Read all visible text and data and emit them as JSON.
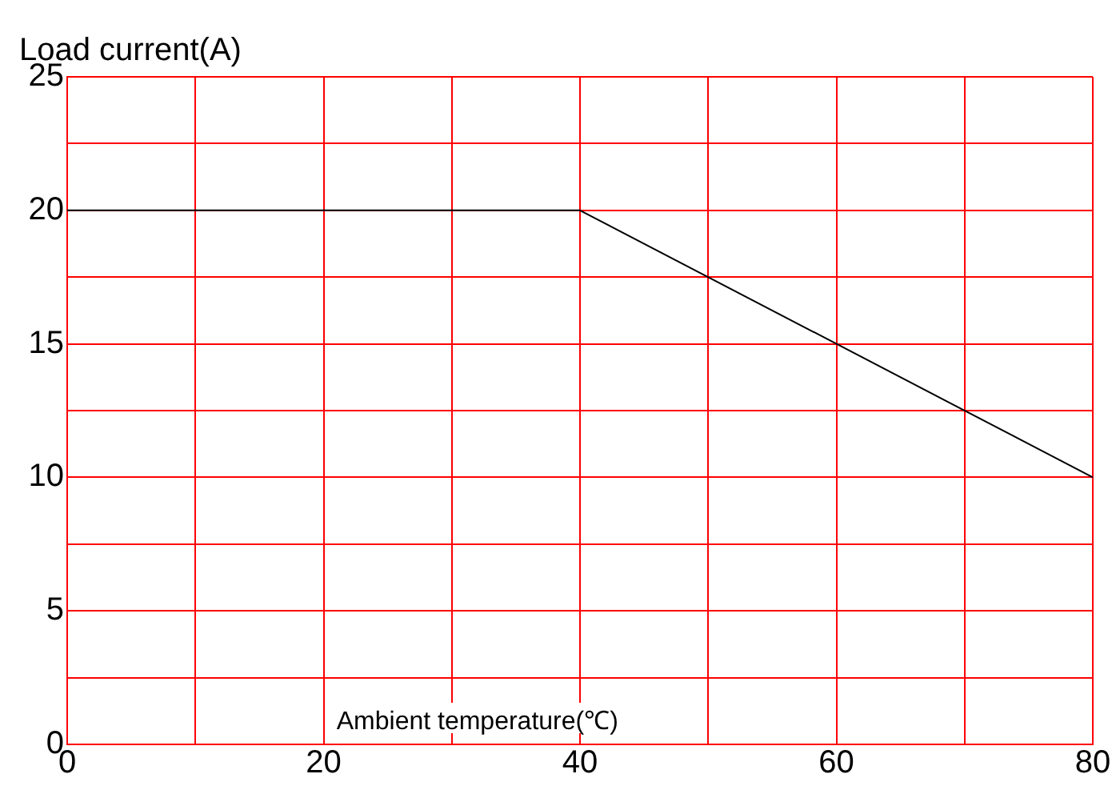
{
  "chart_data": {
    "type": "line",
    "xlabel": "Ambient temperature(℃)",
    "ylabel": "Load current(A)",
    "x": [
      0,
      40,
      80
    ],
    "series": [
      {
        "color": "#000000",
        "values": [
          20,
          20,
          10
        ]
      }
    ],
    "xlim": [
      0,
      80
    ],
    "ylim": [
      0,
      25
    ],
    "xticks": [
      0,
      {
        "value": 10,
        "label": null
      },
      20,
      {
        "value": 30,
        "label": null
      },
      40,
      {
        "value": 50,
        "label": null
      },
      60,
      {
        "value": 70,
        "label": null
      },
      80
    ],
    "yticks": [
      0,
      {
        "value": 2.5,
        "label": null
      },
      5,
      {
        "value": 7.5,
        "label": null
      },
      10,
      {
        "value": 12.5,
        "label": null
      },
      15,
      {
        "value": 17.5,
        "label": null
      },
      20,
      {
        "value": 22.5,
        "label": null
      },
      25
    ],
    "grid": true,
    "legend": false,
    "marker": "none",
    "line_style": "solid"
  }
}
